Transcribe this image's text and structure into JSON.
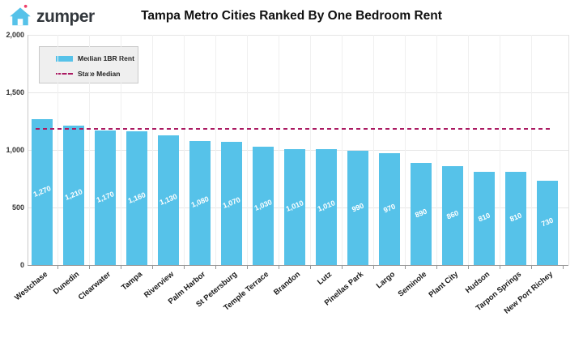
{
  "header": {
    "logo_text": "zumper",
    "title": "Tampa Metro Cities Ranked By One Bedroom Rent"
  },
  "legend": {
    "bar_label": "Median 1BR Rent",
    "line_label": "State Median"
  },
  "chart_data": {
    "type": "bar",
    "title": "Tampa Metro Cities Ranked By One Bedroom Rent",
    "categories": [
      "Westchase",
      "Dunedin",
      "Clearwater",
      "Tampa",
      "Riverview",
      "Palm Harbor",
      "St Petersburg",
      "Temple Terrace",
      "Brandon",
      "Lutz",
      "Pinellas Park",
      "Largo",
      "Seminole",
      "Plant City",
      "Hudson",
      "Tarpon Springs",
      "New Port Richey"
    ],
    "values": [
      1270,
      1210,
      1170,
      1160,
      1130,
      1080,
      1070,
      1030,
      1010,
      1010,
      990,
      970,
      890,
      860,
      810,
      810,
      730
    ],
    "series_name": "Median 1BR Rent",
    "state_median": 1180,
    "state_median_label": "State Median",
    "ylim": [
      0,
      2000
    ],
    "yticks": [
      0,
      500,
      1000,
      1500,
      2000
    ],
    "ytick_labels": [
      "0",
      "500",
      "1,000",
      "1,500",
      "2,000"
    ],
    "xlabel": "",
    "ylabel": "",
    "grid": true,
    "legend_position": "top-left",
    "bar_color": "#56C2E9",
    "median_line_color": "#AB1A62"
  },
  "colors": {
    "background": "#FFFFFF",
    "bar": "#56C2E9",
    "median_line": "#AB1A62",
    "logo_blue": "#56C2E9",
    "logo_dot": "#EE3F6A",
    "logo_text": "#32373C",
    "grid": "#E6E6E6"
  },
  "icons": {
    "logo": "house-icon",
    "legend_bar": "bar-swatch",
    "legend_line": "dashed-line-swatch"
  }
}
